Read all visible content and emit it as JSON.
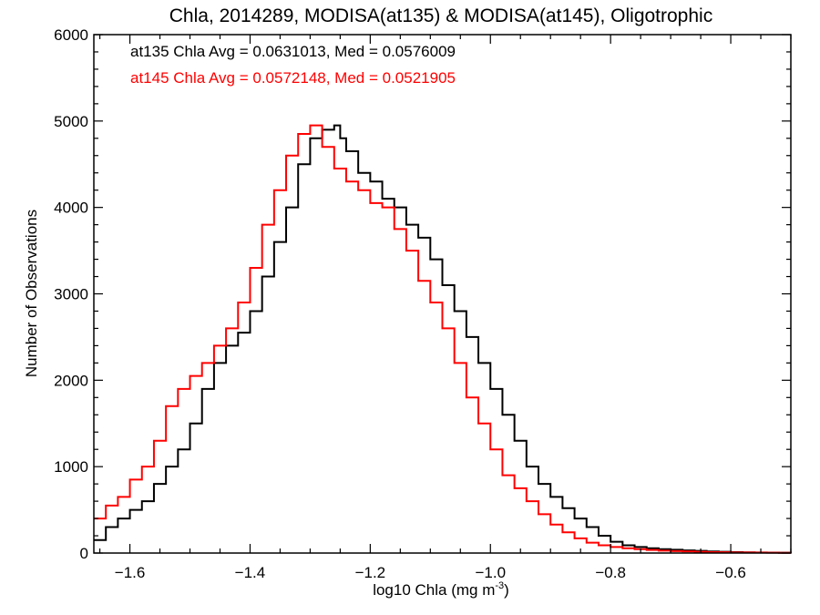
{
  "chart_data": {
    "type": "line",
    "step": true,
    "title": "Chla, 2014289, MODISA(at135) & MODISA(at145), Oligotrophic",
    "xlabel_main": "log10 Chla (mg m",
    "xlabel_sup": "-3",
    "xlabel_end": ")",
    "ylabel": "Number of Observations",
    "xlim": [
      -1.66,
      -0.5
    ],
    "ylim": [
      0,
      6000
    ],
    "x_ticks": [
      -1.6,
      -1.4,
      -1.2,
      -1.0,
      -0.8,
      -0.6
    ],
    "x_tick_labels": [
      "−1.6",
      "−1.4",
      "−1.2",
      "−1.0",
      "−0.8",
      "−0.6"
    ],
    "y_ticks": [
      0,
      1000,
      2000,
      3000,
      4000,
      5000,
      6000
    ],
    "y_tick_labels": [
      "0",
      "1000",
      "2000",
      "3000",
      "4000",
      "5000",
      "6000"
    ],
    "annotations": [
      {
        "text": "at135 Chla Avg = 0.0631013, Med = 0.0576009",
        "color": "#000000"
      },
      {
        "text": "at145 Chla Avg = 0.0572148, Med = 0.0521905",
        "color": "#ff0000"
      }
    ],
    "series": [
      {
        "color": "#000000",
        "x": [
          -1.66,
          -1.64,
          -1.62,
          -1.6,
          -1.58,
          -1.56,
          -1.54,
          -1.52,
          -1.5,
          -1.48,
          -1.46,
          -1.44,
          -1.42,
          -1.4,
          -1.38,
          -1.36,
          -1.34,
          -1.32,
          -1.3,
          -1.28,
          -1.26,
          -1.25,
          -1.24,
          -1.22,
          -1.2,
          -1.18,
          -1.16,
          -1.14,
          -1.12,
          -1.1,
          -1.08,
          -1.06,
          -1.04,
          -1.02,
          -1.0,
          -0.98,
          -0.96,
          -0.94,
          -0.92,
          -0.9,
          -0.88,
          -0.86,
          -0.84,
          -0.82,
          -0.8,
          -0.78,
          -0.76,
          -0.74,
          -0.72,
          -0.7,
          -0.68,
          -0.66,
          -0.64,
          -0.62,
          -0.6,
          -0.58,
          -0.56,
          -0.54,
          -0.52,
          -0.5
        ],
        "y": [
          150,
          300,
          400,
          500,
          600,
          800,
          1000,
          1200,
          1500,
          1900,
          2200,
          2400,
          2550,
          2800,
          3200,
          3600,
          4000,
          4500,
          4800,
          4900,
          4950,
          4800,
          4650,
          4400,
          4300,
          4100,
          4000,
          3800,
          3650,
          3400,
          3100,
          2800,
          2500,
          2200,
          1900,
          1600,
          1300,
          1000,
          800,
          650,
          520,
          400,
          300,
          200,
          130,
          90,
          70,
          55,
          45,
          38,
          30,
          25,
          18,
          14,
          10,
          8,
          6,
          5,
          4,
          3
        ]
      },
      {
        "color": "#ff0000",
        "x": [
          -1.66,
          -1.64,
          -1.62,
          -1.6,
          -1.58,
          -1.56,
          -1.54,
          -1.52,
          -1.5,
          -1.48,
          -1.46,
          -1.44,
          -1.42,
          -1.4,
          -1.38,
          -1.36,
          -1.34,
          -1.32,
          -1.3,
          -1.28,
          -1.26,
          -1.24,
          -1.22,
          -1.2,
          -1.18,
          -1.16,
          -1.14,
          -1.12,
          -1.1,
          -1.08,
          -1.06,
          -1.04,
          -1.02,
          -1.0,
          -0.98,
          -0.96,
          -0.94,
          -0.92,
          -0.9,
          -0.88,
          -0.86,
          -0.84,
          -0.82,
          -0.8,
          -0.78,
          -0.76,
          -0.74,
          -0.72,
          -0.7,
          -0.68,
          -0.66,
          -0.64,
          -0.62,
          -0.6,
          -0.58,
          -0.56,
          -0.54,
          -0.52,
          -0.5
        ],
        "y": [
          400,
          550,
          650,
          850,
          1000,
          1300,
          1700,
          1900,
          2050,
          2200,
          2400,
          2600,
          2900,
          3300,
          3800,
          4200,
          4600,
          4850,
          4950,
          4700,
          4450,
          4300,
          4200,
          4050,
          4000,
          3750,
          3500,
          3150,
          2900,
          2600,
          2200,
          1800,
          1500,
          1200,
          900,
          750,
          600,
          450,
          330,
          240,
          170,
          120,
          90,
          70,
          55,
          45,
          35,
          28,
          22,
          18,
          14,
          11,
          9,
          7,
          6,
          5,
          4,
          3,
          2
        ]
      }
    ],
    "grid": false,
    "legend": "none"
  }
}
